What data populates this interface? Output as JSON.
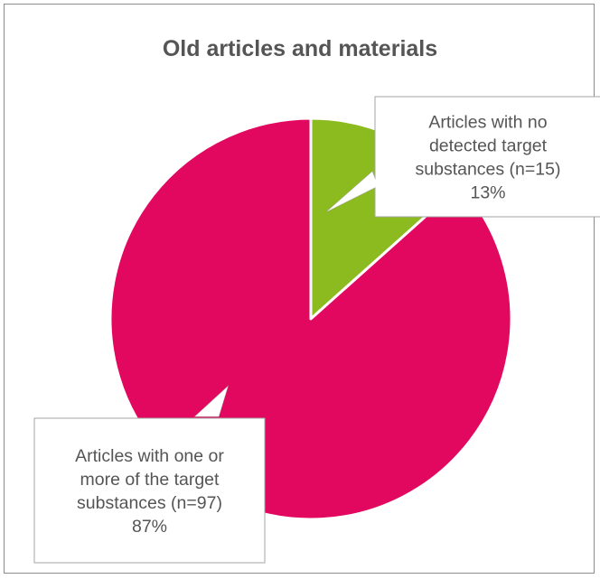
{
  "chart_data": {
    "type": "pie",
    "title": "Old articles and materials",
    "slices": [
      {
        "label_lines": [
          "Articles with no",
          "detected target",
          "substances (n=15)",
          "13%"
        ],
        "n": 15,
        "percent": 13,
        "color": "#8bbb1e"
      },
      {
        "label_lines": [
          "Articles with one or",
          "more of the target",
          "substances  (n=97)",
          "87%"
        ],
        "n": 97,
        "percent": 87,
        "color": "#e2075f"
      }
    ]
  }
}
